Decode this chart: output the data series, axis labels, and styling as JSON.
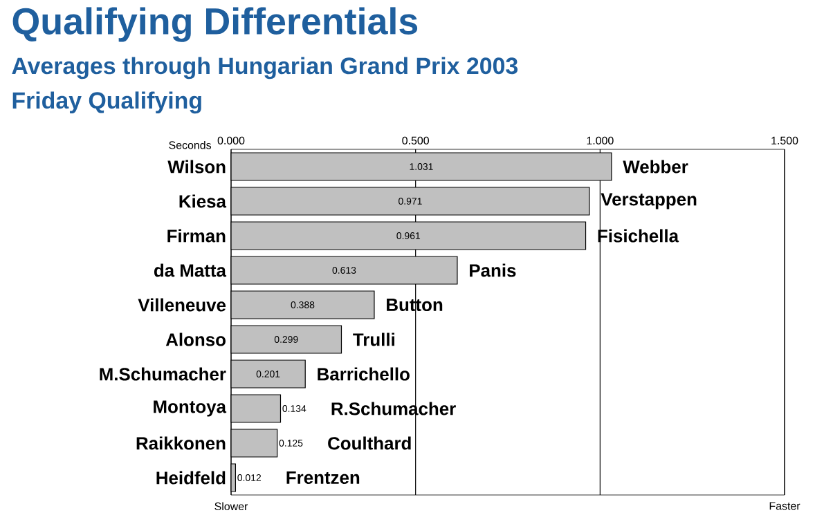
{
  "chart_data": {
    "type": "bar",
    "orientation": "horizontal",
    "title": "Qualifying Differentials",
    "subtitle": "Averages through Hungarian Grand Prix 2003",
    "xlabel": "Seconds",
    "categories": [
      "Wilson",
      "Kiesa",
      "Firman",
      "da Matta",
      "Villeneuve",
      "Alonso",
      "M.Schumacher",
      "Montoya",
      "Raikkonen",
      "Heidfeld"
    ],
    "values": [
      1.031,
      0.971,
      0.961,
      0.613,
      0.388,
      0.299,
      0.201,
      0.134,
      0.125,
      0.012
    ],
    "color": "#c0c0c0",
    "data_labels": true,
    "xlim": [
      0,
      1.5
    ],
    "xticks": [
      {
        "value": 0,
        "label": "0.000"
      },
      {
        "value": 0.5,
        "label": "0.500"
      },
      {
        "value": 1,
        "label": "1.000"
      },
      {
        "value": 1.5,
        "label": "1.500"
      }
    ],
    "grid": "x",
    "annotations": [
      "Friday Qualifying",
      "Slower",
      "Faster",
      {
        "text": "Webber",
        "x": 1.031,
        "y": "Wilson"
      },
      {
        "text": "Verstappen",
        "x": 0.971,
        "y": "Kiesa"
      },
      {
        "text": "Fisichella",
        "x": 0.961,
        "y": "Firman"
      },
      {
        "text": "Panis",
        "x": 0.613,
        "y": "da Matta"
      },
      {
        "text": "Button",
        "x": 0.388,
        "y": "Villeneuve"
      },
      {
        "text": "Trulli",
        "x": 0.299,
        "y": "Alonso"
      },
      {
        "text": "Barrichello",
        "x": 0.201,
        "y": "M.Schumacher"
      },
      {
        "text": "R.Schumacher",
        "x": 0.134,
        "y": "Montoya"
      },
      {
        "text": "Coulthard",
        "x": 0.125,
        "y": "Raikkonen"
      },
      {
        "text": "Frentzen",
        "x": 0.012,
        "y": "Heidfeld"
      }
    ]
  }
}
